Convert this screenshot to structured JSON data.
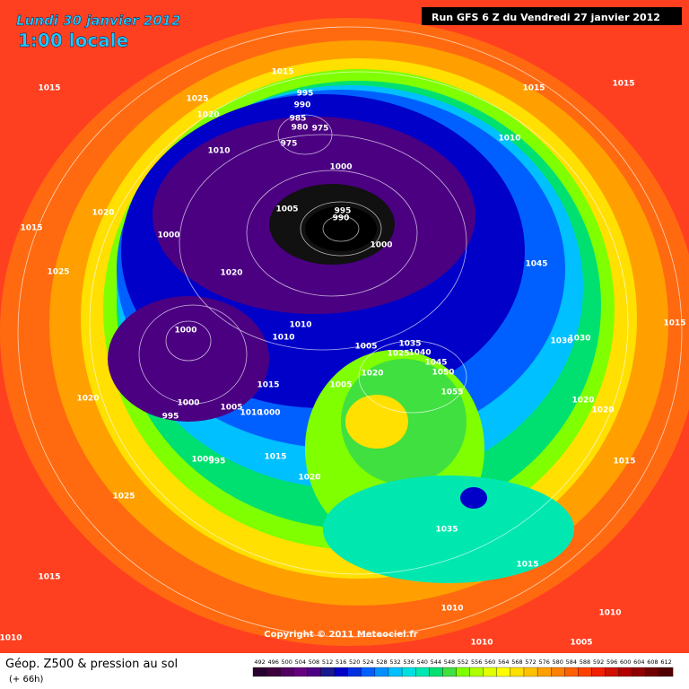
{
  "header": {
    "date": "Lundi 30 janvier 2012",
    "time": "1:00 locale",
    "run": "Run GFS 6 Z du Vendredi 27 janvier 2012"
  },
  "copyright": "Copyright © 2011 Meteociel.fr",
  "footer": {
    "title": "Géop. Z500 & pression au sol",
    "lead": "(+ 66h)"
  },
  "legend": {
    "values": [
      492,
      496,
      500,
      504,
      508,
      512,
      516,
      520,
      524,
      528,
      532,
      536,
      540,
      544,
      548,
      552,
      556,
      560,
      564,
      568,
      572,
      576,
      580,
      584,
      588,
      592,
      596,
      600,
      604,
      608,
      612
    ],
    "colors": [
      "#2a0030",
      "#3c003f",
      "#500060",
      "#660080",
      "#4b0082",
      "#1a1a90",
      "#0000c8",
      "#0030e0",
      "#0060ff",
      "#0090ff",
      "#00c0ff",
      "#00e0e0",
      "#00e8b0",
      "#00e070",
      "#40e040",
      "#80ff00",
      "#b0ff00",
      "#e0ff00",
      "#ffff00",
      "#ffe000",
      "#ffc000",
      "#ffa000",
      "#ff8000",
      "#ff6000",
      "#ff4000",
      "#f02000",
      "#d01000",
      "#b00000",
      "#900000",
      "#700000",
      "#500000"
    ]
  },
  "isobars": [
    "1015",
    "1015",
    "1025",
    "1020",
    "995",
    "990",
    "985",
    "980",
    "975",
    "975",
    "1010",
    "1000",
    "1020",
    "1015",
    "1000",
    "1005",
    "995",
    "990",
    "1000",
    "1025",
    "1020",
    "1045",
    "1015",
    "1015",
    "1010",
    "1015",
    "1000",
    "1010",
    "1010",
    "1005",
    "1035",
    "1025",
    "1040",
    "1030",
    "1030",
    "1045",
    "1050",
    "1020",
    "1055",
    "1015",
    "1005",
    "1020",
    "1000",
    "995",
    "1005",
    "1010",
    "1000",
    "1020",
    "1020",
    "1015",
    "1000",
    "995",
    "1015",
    "1020",
    "1025",
    "1035",
    "1015",
    "1015",
    "1010",
    "1010",
    "1010",
    "1010",
    "1005"
  ]
}
